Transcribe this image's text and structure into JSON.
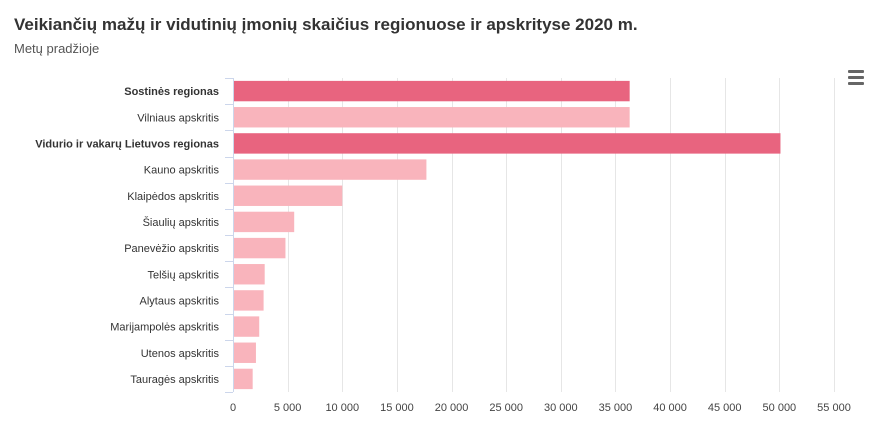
{
  "chart_data": {
    "type": "bar",
    "orientation": "horizontal",
    "title": "Veikiančių mažų ir vidutinių įmonių skaičius regionuose ir apskrityse 2020 m.",
    "subtitle": "Metų pradžioje",
    "categories": [
      "Sostinės regionas",
      "Vilniaus apskritis",
      "Vidurio ir vakarų Lietuvos regionas",
      "Kauno apskritis",
      "Klaipėdos apskritis",
      "Šiaulių apskritis",
      "Panevėžio apskritis",
      "Telšių apskritis",
      "Alytaus apskritis",
      "Marijampolės apskritis",
      "Utenos apskritis",
      "Tauragės apskritis"
    ],
    "values": [
      36300,
      36300,
      50100,
      17700,
      10000,
      5600,
      4800,
      2900,
      2800,
      2400,
      2100,
      1800
    ],
    "bold_categories": [
      "Sostinės regionas",
      "Vidurio ir vakarų Lietuvos regionas"
    ],
    "xlim": [
      0,
      55000
    ],
    "x_ticks": [
      0,
      5000,
      10000,
      15000,
      20000,
      25000,
      30000,
      35000,
      40000,
      45000,
      50000,
      55000
    ],
    "x_tick_labels": [
      "0",
      "5 000",
      "10 000",
      "15 000",
      "20 000",
      "25 000",
      "30 000",
      "35 000",
      "40 000",
      "45 000",
      "50 000",
      "55 000"
    ],
    "grid": true,
    "colors": {
      "region": "#e8647f",
      "county": "#f9b4bc",
      "grid": "#e6e6e6",
      "axis": "#ccd6eb"
    }
  },
  "menu_icon": "hamburger-icon"
}
